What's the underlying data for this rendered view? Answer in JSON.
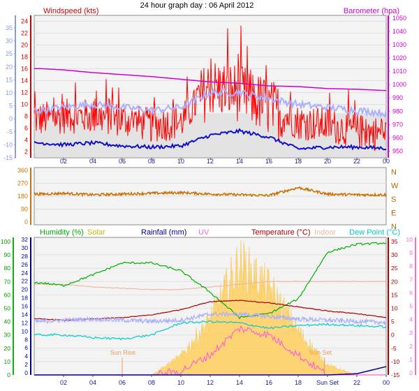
{
  "title": "24 hour graph day : 06 April 2012",
  "colors": {
    "wind": "#ff0000",
    "wind_dark": "#b30000",
    "gust_avg": "#1010c8",
    "temp_blue": "#aab0ff",
    "baro": "#cc00cc",
    "direction": "#c87000",
    "humidity": "#00b000",
    "solar": "#ffd060",
    "rain": "#000099",
    "uv": "#ff66cc",
    "temperature": "#aa0000",
    "indoor": "#f0b8a0",
    "dewpoint": "#00cccc",
    "axis_left": "#8899ee"
  },
  "x_ticks": [
    "02",
    "04",
    "06",
    "08",
    "10",
    "12",
    "14",
    "16",
    "18",
    "20",
    "22",
    "00"
  ],
  "chart_data": [
    {
      "type": "line",
      "id": "wind_baro",
      "legend": [
        "Windspeed (kts)",
        "Barometer (hpa)"
      ],
      "x": [
        0.5,
        2,
        4,
        6,
        8,
        10,
        12,
        14,
        16,
        18,
        20,
        22,
        24
      ],
      "y_left_ticks": [
        "35",
        "30",
        "25",
        "20",
        "15",
        "10",
        "5",
        "0",
        "-5",
        "-10",
        "-15"
      ],
      "y_wind_ticks": [
        "24",
        "22",
        "20",
        "18",
        "16",
        "14",
        "12",
        "10",
        "8",
        "6",
        "4",
        "2"
      ],
      "y_right_ticks": [
        "1050",
        "1040",
        "1030",
        "1020",
        "1010",
        "1000",
        "990",
        "980",
        "970",
        "960",
        "950"
      ],
      "ylim_wind": [
        1,
        25
      ],
      "ylim_baro": [
        945,
        1052
      ],
      "series": [
        {
          "name": "Windspeed (kts)",
          "values": [
            7.5,
            8,
            8,
            7.5,
            6.5,
            7,
            13,
            12,
            9.5,
            7,
            6.5,
            5.5,
            5
          ]
        },
        {
          "name": "Barometer (hpa)",
          "values": [
            1012,
            1011,
            1009,
            1007.5,
            1006,
            1004,
            1002,
            1001,
            999,
            998.5,
            997,
            996.5,
            995.5
          ]
        }
      ],
      "gust_avg_knots": [
        3.5,
        3.2,
        3.5,
        3,
        2.8,
        3,
        4.8,
        5.5,
        4.5,
        2.5,
        2.8,
        2.8,
        2.6
      ],
      "light_blue_knots": [
        9,
        9.5,
        10,
        9.5,
        9,
        9.5,
        12,
        12,
        11,
        10,
        9.5,
        9,
        8.5
      ]
    },
    {
      "type": "line",
      "id": "direction",
      "y_ticks": [
        "360",
        "270",
        "180",
        "90",
        "0"
      ],
      "y_right_ticks": [
        "N",
        "W",
        "S",
        "E",
        "N"
      ],
      "ylim": [
        0,
        360
      ],
      "series": [
        {
          "name": "direction",
          "values": [
            195,
            200,
            190,
            195,
            200,
            205,
            195,
            190,
            185,
            240,
            195,
            190,
            190
          ]
        }
      ]
    },
    {
      "type": "line",
      "id": "combined",
      "legend": [
        "Humidity (%)",
        "Solar",
        "Rainfall (mm)",
        "UV",
        "Temperature (°C)",
        "Indoor",
        "Dew Point (°C)"
      ],
      "annotations": [
        "Sun Rise",
        "Sun Set"
      ],
      "x_ticks": [
        "02",
        "04",
        "06",
        "08",
        "10",
        "12",
        "14",
        "16",
        "18",
        "Sun Set",
        "22",
        "00"
      ],
      "y_humidity_ticks": [
        "100",
        "90",
        "80",
        "70",
        "60",
        "50",
        "40",
        "30",
        "20",
        "10",
        "0"
      ],
      "y_rain_ticks": [
        "32",
        "30",
        "28",
        "26",
        "24",
        "22",
        "20",
        "18",
        "16",
        "14",
        "12",
        "10",
        "8",
        "6",
        "4",
        "2",
        "0"
      ],
      "y_temp_ticks": [
        "35",
        "30",
        "25",
        "20",
        "15",
        "10",
        "5",
        "0",
        "-5",
        "-10",
        "-15"
      ],
      "y_uv_ticks": [
        "10",
        "9",
        "8",
        "7",
        "6",
        "5",
        "4",
        "3",
        "2",
        "1",
        "0"
      ],
      "ylim_humidity": [
        0,
        100
      ],
      "ylim_temp": [
        -15,
        35
      ],
      "series": [
        {
          "name": "Humidity (%)",
          "values": [
            69,
            67,
            75,
            84,
            84,
            78,
            62,
            43,
            46,
            57,
            92,
            98,
            99
          ]
        },
        {
          "name": "Temperature (°C)",
          "values": [
            6,
            5.5,
            6,
            6.5,
            7.5,
            9.5,
            12.5,
            13,
            12,
            10.5,
            9,
            8,
            6.5
          ]
        },
        {
          "name": "Indoor",
          "values": [
            19,
            19,
            18,
            17.5,
            17,
            17,
            18,
            19,
            20,
            20,
            20,
            20,
            20
          ]
        },
        {
          "name": "Dew Point (°C)",
          "values": [
            0,
            0,
            -1,
            -1.5,
            0,
            4.5,
            5,
            4.5,
            2.5,
            3.5,
            4,
            3.5,
            3
          ]
        },
        {
          "name": "Rainfall (mm)",
          "values": [
            0,
            0,
            0,
            0,
            0,
            0,
            0,
            0,
            0,
            0,
            0,
            0.3,
            2
          ]
        },
        {
          "name": "UV",
          "values": [
            0,
            0,
            0,
            0,
            0,
            0.3,
            1.5,
            3.5,
            3,
            1.5,
            0,
            0,
            0
          ]
        }
      ],
      "solar_relative": [
        0,
        0,
        0,
        0,
        0,
        0.15,
        0.45,
        0.9,
        0.7,
        0.35,
        0.08,
        0,
        0
      ]
    }
  ]
}
